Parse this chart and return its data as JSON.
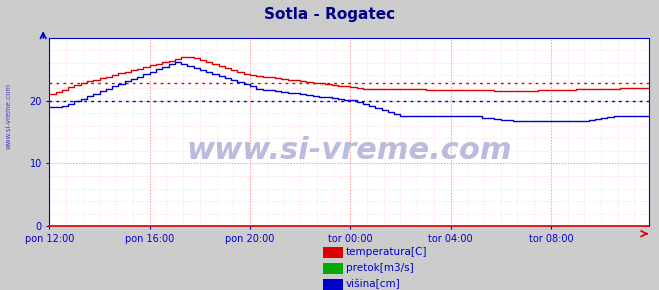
{
  "title": "Sotla - Rogatec",
  "title_color": "#000088",
  "title_fontsize": 11,
  "bg_color": "#cccccc",
  "plot_bg_color": "#ffffff",
  "ylim": [
    0,
    30
  ],
  "yticks": [
    0,
    10,
    20
  ],
  "xlim": [
    0,
    287
  ],
  "xtick_labels": [
    "pon 12:00",
    "pon 16:00",
    "pon 20:00",
    "tor 00:00",
    "tor 04:00",
    "tor 08:00"
  ],
  "xtick_positions": [
    0,
    48,
    96,
    144,
    192,
    240
  ],
  "watermark": "www.si-vreme.com",
  "watermark_color": "#bbbbdd",
  "watermark_fontsize": 22,
  "legend_labels": [
    "temperatura[C]",
    "pretok[m3/s]",
    "višina[cm]"
  ],
  "legend_colors": [
    "#dd0000",
    "#00aa00",
    "#0000cc"
  ],
  "temp_avg": 22.8,
  "visina_avg": 20.0,
  "temp_color": "#dd0000",
  "pretok_color": "#00aa00",
  "visina_color": "#0000cc",
  "axis_color": "#0000cc",
  "tick_color": "#0000cc",
  "arrow_color": "#cc0000",
  "left_label": "www.si-vreme.com",
  "left_label_color": "#0000cc",
  "grid_minor_color": "#ffcccc",
  "grid_major_color": "#ff9999"
}
